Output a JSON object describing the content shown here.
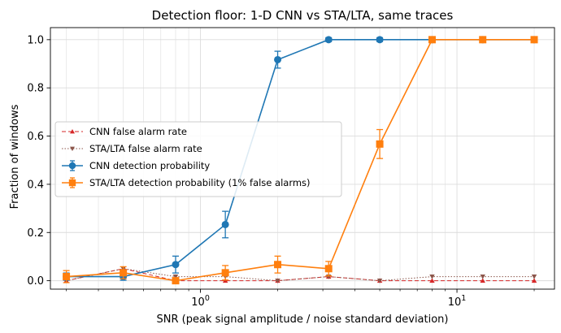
{
  "chart_data": {
    "type": "line",
    "title": "Detection floor: 1-D CNN vs STA/LTA, same traces",
    "xlabel": "SNR (peak signal amplitude / noise standard deviation)",
    "ylabel": "Fraction of windows",
    "xscale": "log",
    "xlim": [
      0.26,
      24
    ],
    "ylim": [
      -0.035,
      1.05
    ],
    "yticks": [
      0.0,
      0.2,
      0.4,
      0.6,
      0.8,
      1.0
    ],
    "ytick_labels": [
      "0.0",
      "0.2",
      "0.4",
      "0.6",
      "0.8",
      "1.0"
    ],
    "xticks": [
      1,
      10
    ],
    "xtick_labels": [
      "10^0",
      "10^1"
    ],
    "grid": true,
    "legend_position": "center-left",
    "x": [
      0.3,
      0.5,
      0.8,
      1.25,
      2.0,
      3.16,
      5.0,
      8.0,
      12.6,
      20.0
    ],
    "series": [
      {
        "name": "CNN false alarm rate",
        "color": "#d62728",
        "style": "dashed",
        "marker": "triangle-up",
        "values": [
          0.0,
          0.05,
          0.0,
          0.0,
          0.0,
          0.017,
          0.0,
          0.0,
          0.0,
          0.0
        ]
      },
      {
        "name": "STA/LTA false alarm rate",
        "color": "#8c564b",
        "style": "dotted",
        "marker": "triangle-down",
        "values": [
          0.0,
          0.05,
          0.017,
          0.017,
          0.0,
          0.017,
          0.0,
          0.017,
          0.017,
          0.017
        ]
      },
      {
        "name": "CNN detection probability",
        "color": "#1f77b4",
        "style": "solid",
        "marker": "circle",
        "values": [
          0.017,
          0.017,
          0.067,
          0.233,
          0.917,
          1.0,
          1.0,
          1.0,
          1.0,
          1.0
        ],
        "errors": [
          0.015,
          0.015,
          0.035,
          0.055,
          0.035,
          0.008,
          0.008,
          0.008,
          0.008,
          0.008
        ]
      },
      {
        "name": "STA/LTA detection probability (1% false alarms)",
        "color": "#ff7f0e",
        "style": "solid",
        "marker": "square",
        "values": [
          0.017,
          0.033,
          0.0,
          0.033,
          0.067,
          0.05,
          0.567,
          1.0,
          1.0,
          1.0
        ],
        "errors": [
          0.025,
          0.025,
          0.01,
          0.03,
          0.035,
          0.03,
          0.06,
          0.008,
          0.008,
          0.008
        ]
      }
    ]
  }
}
